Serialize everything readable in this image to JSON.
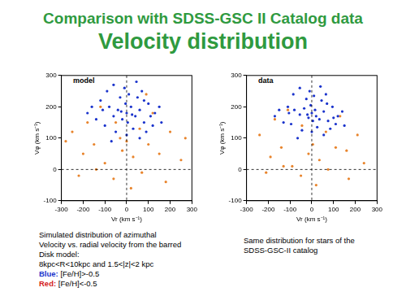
{
  "header": {
    "title": "Comparison with SDSS-GSC II Catalog data",
    "subtitle": "Velocity distribution"
  },
  "chart_data": [
    {
      "type": "scatter",
      "annotation": "model",
      "x_label": "Vr (km s⁻¹)",
      "y_label": "Vφ (km s⁻¹)",
      "xlim": [
        -300,
        300
      ],
      "xticks": [
        -300,
        -200,
        -100,
        0,
        100,
        200,
        300
      ],
      "ylim": [
        -100,
        300
      ],
      "yticks": [
        -100,
        0,
        100,
        200,
        300
      ],
      "grid": false,
      "ref_lines": {
        "x": [
          0
        ],
        "y": [
          0
        ]
      },
      "series": [
        {
          "name": "[Fe/H]>-0.5",
          "color": "#1a33cc",
          "marker": "circle",
          "x": [
            -120,
            -80,
            -60,
            -40,
            -20,
            0,
            20,
            40,
            60,
            80,
            100,
            130,
            -140,
            -100,
            -30,
            10,
            50,
            90,
            -50,
            30,
            -10,
            70,
            -90,
            120,
            150,
            -160,
            0,
            -70,
            60,
            110,
            -110,
            25,
            -25,
            5,
            -5,
            160,
            -180,
            45,
            -60,
            80
          ],
          "values": [
            220,
            200,
            170,
            190,
            160,
            180,
            200,
            170,
            190,
            150,
            210,
            180,
            160,
            140,
            230,
            240,
            230,
            120,
            120,
            130,
            260,
            250,
            250,
            140,
            200,
            200,
            110,
            90,
            100,
            170,
            190,
            175,
            185,
            150,
            210,
            150,
            180,
            280,
            270,
            220
          ]
        },
        {
          "name": "[Fe/H]<-0.5",
          "color": "#e8842c",
          "marker": "circle",
          "x": [
            -250,
            -200,
            -180,
            -150,
            -100,
            -60,
            -20,
            0,
            30,
            70,
            100,
            150,
            200,
            250,
            -220,
            180,
            -120,
            120,
            -50,
            60,
            -280,
            270,
            20,
            -140,
            90,
            -30
          ],
          "values": [
            120,
            50,
            150,
            80,
            20,
            -30,
            60,
            90,
            40,
            -10,
            80,
            50,
            120,
            30,
            -20,
            -40,
            200,
            180,
            150,
            130,
            90,
            100,
            -60,
            0,
            240,
            100
          ]
        }
      ]
    },
    {
      "type": "scatter",
      "annotation": "data",
      "x_label": "Vr (km s⁻¹)",
      "y_label": "Vφ (km s⁻¹)",
      "xlim": [
        -300,
        300
      ],
      "xticks": [
        -300,
        -200,
        -100,
        0,
        100,
        200,
        300
      ],
      "ylim": [
        -100,
        300
      ],
      "yticks": [
        -100,
        0,
        100,
        200,
        300
      ],
      "grid": false,
      "ref_lines": {
        "x": [
          0
        ],
        "y": [
          0
        ]
      },
      "series": [
        {
          "name": "[Fe/H]>-0.5",
          "color": "#1a33cc",
          "marker": "circle",
          "x": [
            -110,
            -80,
            -55,
            -35,
            -15,
            0,
            15,
            35,
            55,
            75,
            95,
            120,
            -130,
            -95,
            -25,
            10,
            45,
            85,
            -45,
            25,
            -10,
            65,
            -85,
            110,
            140,
            -150,
            0,
            -65,
            55,
            100,
            -105,
            20,
            -20,
            5,
            -5,
            150,
            -170,
            40,
            -55,
            70
          ],
          "values": [
            200,
            190,
            175,
            195,
            165,
            180,
            190,
            160,
            185,
            155,
            200,
            170,
            150,
            145,
            225,
            235,
            220,
            130,
            125,
            135,
            250,
            240,
            240,
            145,
            185,
            190,
            120,
            100,
            110,
            165,
            180,
            170,
            175,
            155,
            205,
            140,
            170,
            265,
            260,
            210
          ]
        },
        {
          "name": "[Fe/H]<-0.5",
          "color": "#e8842c",
          "marker": "circle",
          "x": [
            -240,
            -190,
            -170,
            -140,
            -90,
            -50,
            -15,
            5,
            35,
            75,
            110,
            160,
            210,
            240,
            -210,
            170,
            -110,
            130,
            -45,
            65,
            20,
            -130
          ],
          "values": [
            110,
            40,
            160,
            70,
            10,
            -20,
            50,
            80,
            30,
            0,
            70,
            60,
            110,
            20,
            -10,
            -30,
            190,
            170,
            140,
            120,
            -50,
            10
          ]
        }
      ]
    }
  ],
  "captions": {
    "left": [
      "Simulated distribution of azimuthal",
      "Velocity vs. radial velocity from the barred",
      "Disk model:",
      "8kpc<R<10kpc  and 1.5<|z|<2 kpc"
    ],
    "key": [
      {
        "word": "Blue:",
        "color": "#1a33cc"
      },
      {
        "word": "Red:",
        "color": "#d42020"
      }
    ],
    "right": [
      "Same distribution for stars of the",
      "SDSS-GSC-II catalog"
    ]
  }
}
